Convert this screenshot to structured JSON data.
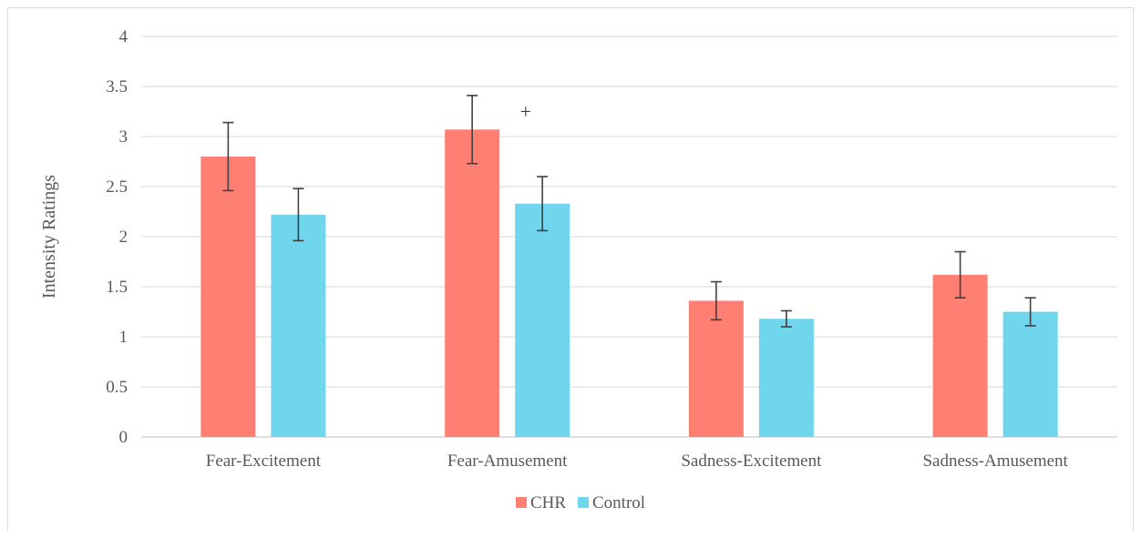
{
  "chart_data": {
    "type": "bar",
    "categories": [
      "Fear-Excitement",
      "Fear-Amusement",
      "Sadness-Excitement",
      "Sadness-Amusement"
    ],
    "series": [
      {
        "name": "CHR",
        "color": "#ff7f73",
        "values": [
          2.8,
          3.07,
          1.36,
          1.62
        ],
        "error": [
          0.34,
          0.34,
          0.19,
          0.23
        ]
      },
      {
        "name": "Control",
        "color": "#6fd6ee",
        "values": [
          2.22,
          2.33,
          1.18,
          1.25
        ],
        "error": [
          0.26,
          0.27,
          0.08,
          0.14
        ]
      }
    ],
    "ylabel": "Intensity Ratings",
    "xlabel": "",
    "title": "",
    "ylim": [
      0,
      4
    ],
    "yticks": [
      "0",
      "0.5",
      "1",
      "1.5",
      "2",
      "2.5",
      "3",
      "3.5",
      "4"
    ],
    "grid": true,
    "legend_position": "bottom",
    "annotations": [
      {
        "text": "+",
        "category": "Fear-Amusement"
      }
    ]
  }
}
